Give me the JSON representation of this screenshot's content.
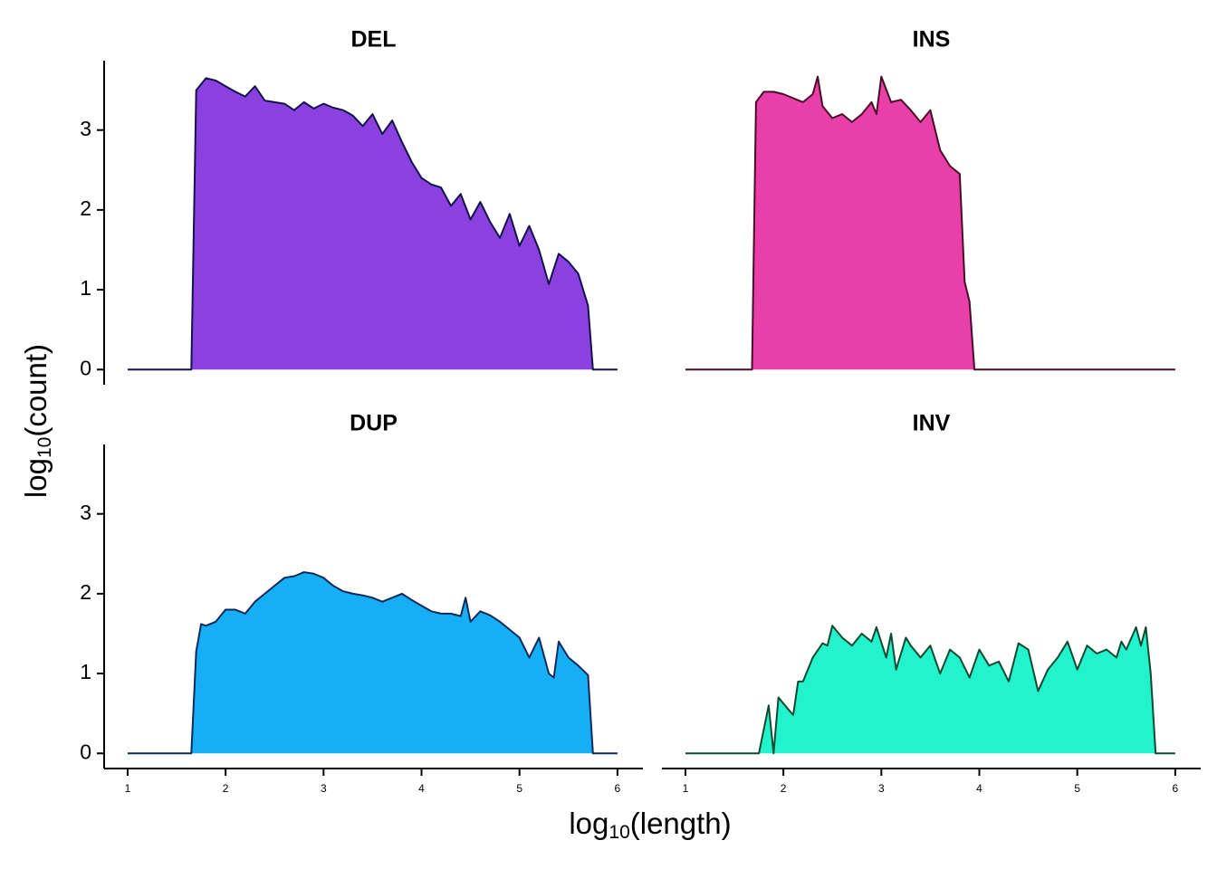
{
  "axis_labels": {
    "x": {
      "text": "log",
      "subscript": "10",
      "suffix": "(length)"
    },
    "y": {
      "text": "log",
      "subscript": "10",
      "suffix": "(count)"
    }
  },
  "chart_data": [
    {
      "type": "area",
      "title": "DEL",
      "color": "#8a41e0",
      "line_color": "#14124a",
      "x": [
        1.0,
        1.65,
        1.7,
        1.8,
        1.9,
        2.0,
        2.1,
        2.2,
        2.3,
        2.4,
        2.5,
        2.6,
        2.7,
        2.8,
        2.9,
        3.0,
        3.1,
        3.2,
        3.3,
        3.4,
        3.5,
        3.6,
        3.7,
        3.8,
        3.9,
        4.0,
        4.1,
        4.2,
        4.3,
        4.4,
        4.5,
        4.6,
        4.7,
        4.8,
        4.9,
        5.0,
        5.1,
        5.2,
        5.3,
        5.4,
        5.5,
        5.6,
        5.7,
        5.75,
        6.0
      ],
      "values": [
        0,
        0,
        3.5,
        3.65,
        3.62,
        3.55,
        3.48,
        3.42,
        3.55,
        3.37,
        3.35,
        3.33,
        3.25,
        3.35,
        3.27,
        3.33,
        3.28,
        3.25,
        3.18,
        3.05,
        3.2,
        2.95,
        3.12,
        2.85,
        2.6,
        2.4,
        2.32,
        2.28,
        2.05,
        2.2,
        1.88,
        2.1,
        1.85,
        1.65,
        1.95,
        1.55,
        1.8,
        1.5,
        1.07,
        1.45,
        1.35,
        1.2,
        0.8,
        0,
        0
      ],
      "xlim": [
        0.76,
        6.26
      ],
      "ylim": [
        -0.19,
        3.87
      ],
      "yticks": [
        0,
        1,
        2,
        3
      ]
    },
    {
      "type": "area",
      "title": "INS",
      "color": "#e93fa8",
      "line_color": "#4a0a2a",
      "x": [
        1.0,
        1.68,
        1.72,
        1.8,
        1.9,
        2.0,
        2.1,
        2.2,
        2.3,
        2.35,
        2.4,
        2.5,
        2.6,
        2.7,
        2.8,
        2.9,
        2.95,
        3.0,
        3.1,
        3.2,
        3.3,
        3.4,
        3.5,
        3.6,
        3.7,
        3.8,
        3.85,
        3.9,
        3.95,
        6.0
      ],
      "values": [
        0,
        0,
        3.35,
        3.48,
        3.48,
        3.45,
        3.4,
        3.35,
        3.45,
        3.67,
        3.3,
        3.15,
        3.2,
        3.1,
        3.2,
        3.35,
        3.2,
        3.67,
        3.35,
        3.38,
        3.25,
        3.1,
        3.25,
        2.75,
        2.55,
        2.45,
        1.1,
        0.85,
        0,
        0
      ],
      "xlim": [
        0.76,
        6.26
      ],
      "ylim": [
        -0.19,
        3.87
      ]
    },
    {
      "type": "area",
      "title": "DUP",
      "color": "#16aef5",
      "line_color": "#0a2a5a",
      "x": [
        1.0,
        1.65,
        1.7,
        1.75,
        1.8,
        1.9,
        2.0,
        2.1,
        2.2,
        2.3,
        2.4,
        2.5,
        2.6,
        2.7,
        2.8,
        2.9,
        3.0,
        3.1,
        3.2,
        3.3,
        3.4,
        3.5,
        3.6,
        3.7,
        3.8,
        3.9,
        4.0,
        4.1,
        4.2,
        4.3,
        4.4,
        4.45,
        4.5,
        4.6,
        4.7,
        4.8,
        4.9,
        5.0,
        5.1,
        5.2,
        5.3,
        5.35,
        5.4,
        5.5,
        5.6,
        5.7,
        5.75,
        6.0
      ],
      "values": [
        0,
        0,
        1.28,
        1.62,
        1.6,
        1.65,
        1.8,
        1.8,
        1.75,
        1.9,
        2.0,
        2.1,
        2.2,
        2.22,
        2.27,
        2.25,
        2.2,
        2.1,
        2.03,
        2.0,
        1.98,
        1.95,
        1.9,
        1.95,
        2.0,
        1.92,
        1.85,
        1.78,
        1.75,
        1.75,
        1.72,
        1.95,
        1.65,
        1.78,
        1.73,
        1.65,
        1.55,
        1.45,
        1.2,
        1.45,
        1.0,
        0.95,
        1.4,
        1.2,
        1.1,
        0.98,
        0,
        0
      ],
      "xlim": [
        0.76,
        6.26
      ],
      "ylim": [
        -0.19,
        3.87
      ],
      "xticks": [
        1,
        2,
        3,
        4,
        5,
        6
      ],
      "yticks": [
        0,
        1,
        2,
        3
      ]
    },
    {
      "type": "area",
      "title": "INV",
      "color": "#22f3cc",
      "line_color": "#0a4a30",
      "x": [
        1.0,
        1.75,
        1.85,
        1.9,
        1.95,
        2.05,
        2.1,
        2.15,
        2.2,
        2.3,
        2.4,
        2.45,
        2.5,
        2.6,
        2.7,
        2.8,
        2.9,
        2.95,
        3.05,
        3.1,
        3.15,
        3.25,
        3.3,
        3.4,
        3.5,
        3.6,
        3.7,
        3.8,
        3.9,
        4.0,
        4.1,
        4.2,
        4.3,
        4.4,
        4.5,
        4.6,
        4.7,
        4.8,
        4.9,
        5.0,
        5.1,
        5.2,
        5.3,
        5.4,
        5.45,
        5.5,
        5.6,
        5.65,
        5.7,
        5.75,
        5.8,
        6.0
      ],
      "values": [
        0,
        0,
        0.6,
        0,
        0.7,
        0.55,
        0.48,
        0.9,
        0.9,
        1.2,
        1.38,
        1.35,
        1.6,
        1.45,
        1.35,
        1.5,
        1.4,
        1.58,
        1.2,
        1.5,
        1.05,
        1.45,
        1.35,
        1.2,
        1.35,
        1.0,
        1.3,
        1.2,
        0.95,
        1.3,
        1.1,
        1.15,
        0.9,
        1.38,
        1.3,
        0.78,
        1.05,
        1.2,
        1.4,
        1.05,
        1.35,
        1.25,
        1.3,
        1.2,
        1.4,
        1.3,
        1.58,
        1.35,
        1.58,
        1.0,
        0,
        0
      ],
      "xlim": [
        0.76,
        6.26
      ],
      "ylim": [
        -0.19,
        3.87
      ],
      "xticks": [
        1,
        2,
        3,
        4,
        5,
        6
      ]
    }
  ]
}
